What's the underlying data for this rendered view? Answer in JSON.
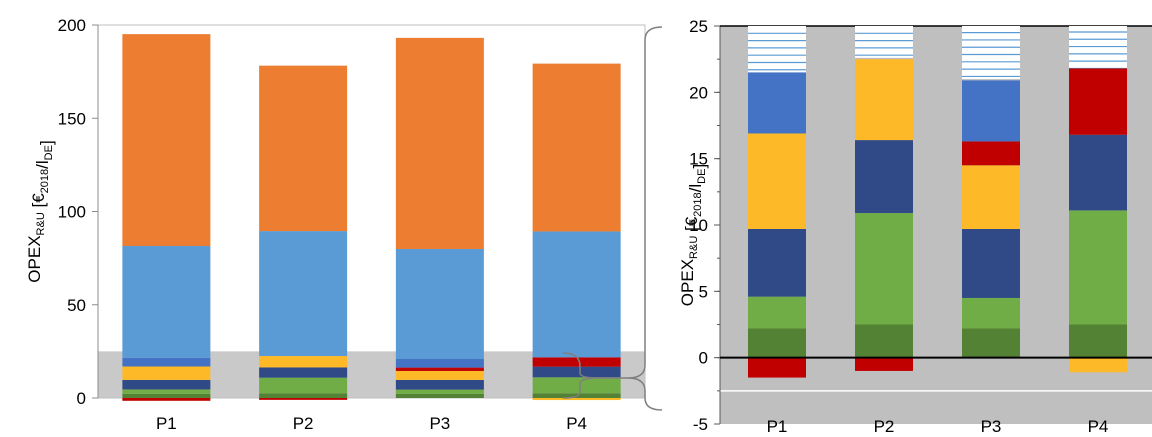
{
  "colors": {
    "orange": "#ed7d31",
    "lightblue": "#5b9bd5",
    "steelblue": "#4472c4",
    "navy": "#2f4a86",
    "gold": "#fdb927",
    "red": "#c00000",
    "green": "#70ad47",
    "darkgreen": "#548235",
    "grey": "#bfbfbf"
  },
  "chart_data": [
    {
      "type": "bar",
      "stacked": true,
      "categories": [
        "P1",
        "P2",
        "P3",
        "P4"
      ],
      "ylim": [
        0,
        200
      ],
      "yticks": [
        "0",
        "50",
        "100",
        "150",
        "200"
      ],
      "ylabel": {
        "main": "OPEX",
        "sub1": "R&U",
        "mid1": " [€",
        "sub2": "2018",
        "mid2": "/l",
        "sub3": "DE",
        "end": "]"
      },
      "highlight_band": [
        0,
        25
      ],
      "series": [
        {
          "color": "darkgreen",
          "values": [
            2.2,
            2.5,
            2.2,
            2.5
          ]
        },
        {
          "color": "green",
          "values": [
            2.4,
            8.4,
            2.3,
            8.6
          ]
        },
        {
          "color": "navy",
          "values": [
            5.1,
            5.5,
            5.2,
            5.7
          ]
        },
        {
          "color": "gold",
          "values": [
            7.2,
            6.1,
            4.8,
            0
          ]
        },
        {
          "color": "red",
          "values": [
            0,
            0,
            1.8,
            5.0
          ]
        },
        {
          "color": "steelblue",
          "values": [
            4.6,
            0,
            4.6,
            0
          ]
        },
        {
          "color": "lightblue",
          "values": [
            60,
            67,
            59,
            67.5
          ]
        },
        {
          "color": "orange",
          "values": [
            113.6,
            88.7,
            113.2,
            90
          ]
        }
      ],
      "negative_series": [
        {
          "color": "red",
          "values": [
            -1.5,
            -1.0,
            0,
            0
          ]
        },
        {
          "color": "gold",
          "values": [
            0,
            0,
            0,
            -1.1
          ]
        }
      ]
    },
    {
      "type": "bar",
      "stacked": true,
      "categories": [
        "P1",
        "P2",
        "P3",
        "P4"
      ],
      "ylim": [
        -5,
        25
      ],
      "yticks": [
        "-5",
        "0",
        "5",
        "10",
        "15",
        "20",
        "25"
      ],
      "ylabel": {
        "main": "OPEX",
        "sub1": "R&U",
        "mid1": " [€",
        "sub2": "2018",
        "mid2": "/l",
        "sub3": "DE",
        "end": "]"
      },
      "series": [
        {
          "color": "darkgreen",
          "values": [
            2.2,
            2.5,
            2.2,
            2.5
          ]
        },
        {
          "color": "green",
          "values": [
            2.4,
            8.4,
            2.3,
            8.6
          ]
        },
        {
          "color": "navy",
          "values": [
            5.1,
            5.5,
            5.2,
            5.7
          ]
        },
        {
          "color": "gold",
          "values": [
            7.2,
            6.1,
            4.8,
            0
          ]
        },
        {
          "color": "red",
          "values": [
            0,
            0,
            1.8,
            5.0
          ]
        },
        {
          "color": "steelblue",
          "values": [
            4.6,
            0,
            4.6,
            0
          ]
        }
      ],
      "negative_series": [
        {
          "color": "red",
          "values": [
            -1.5,
            -1.0,
            0,
            0
          ]
        },
        {
          "color": "gold",
          "values": [
            0,
            0,
            0,
            -1.1
          ]
        }
      ],
      "hatch_top": [
        21.5,
        22.6,
        21.0,
        21.6
      ]
    }
  ]
}
